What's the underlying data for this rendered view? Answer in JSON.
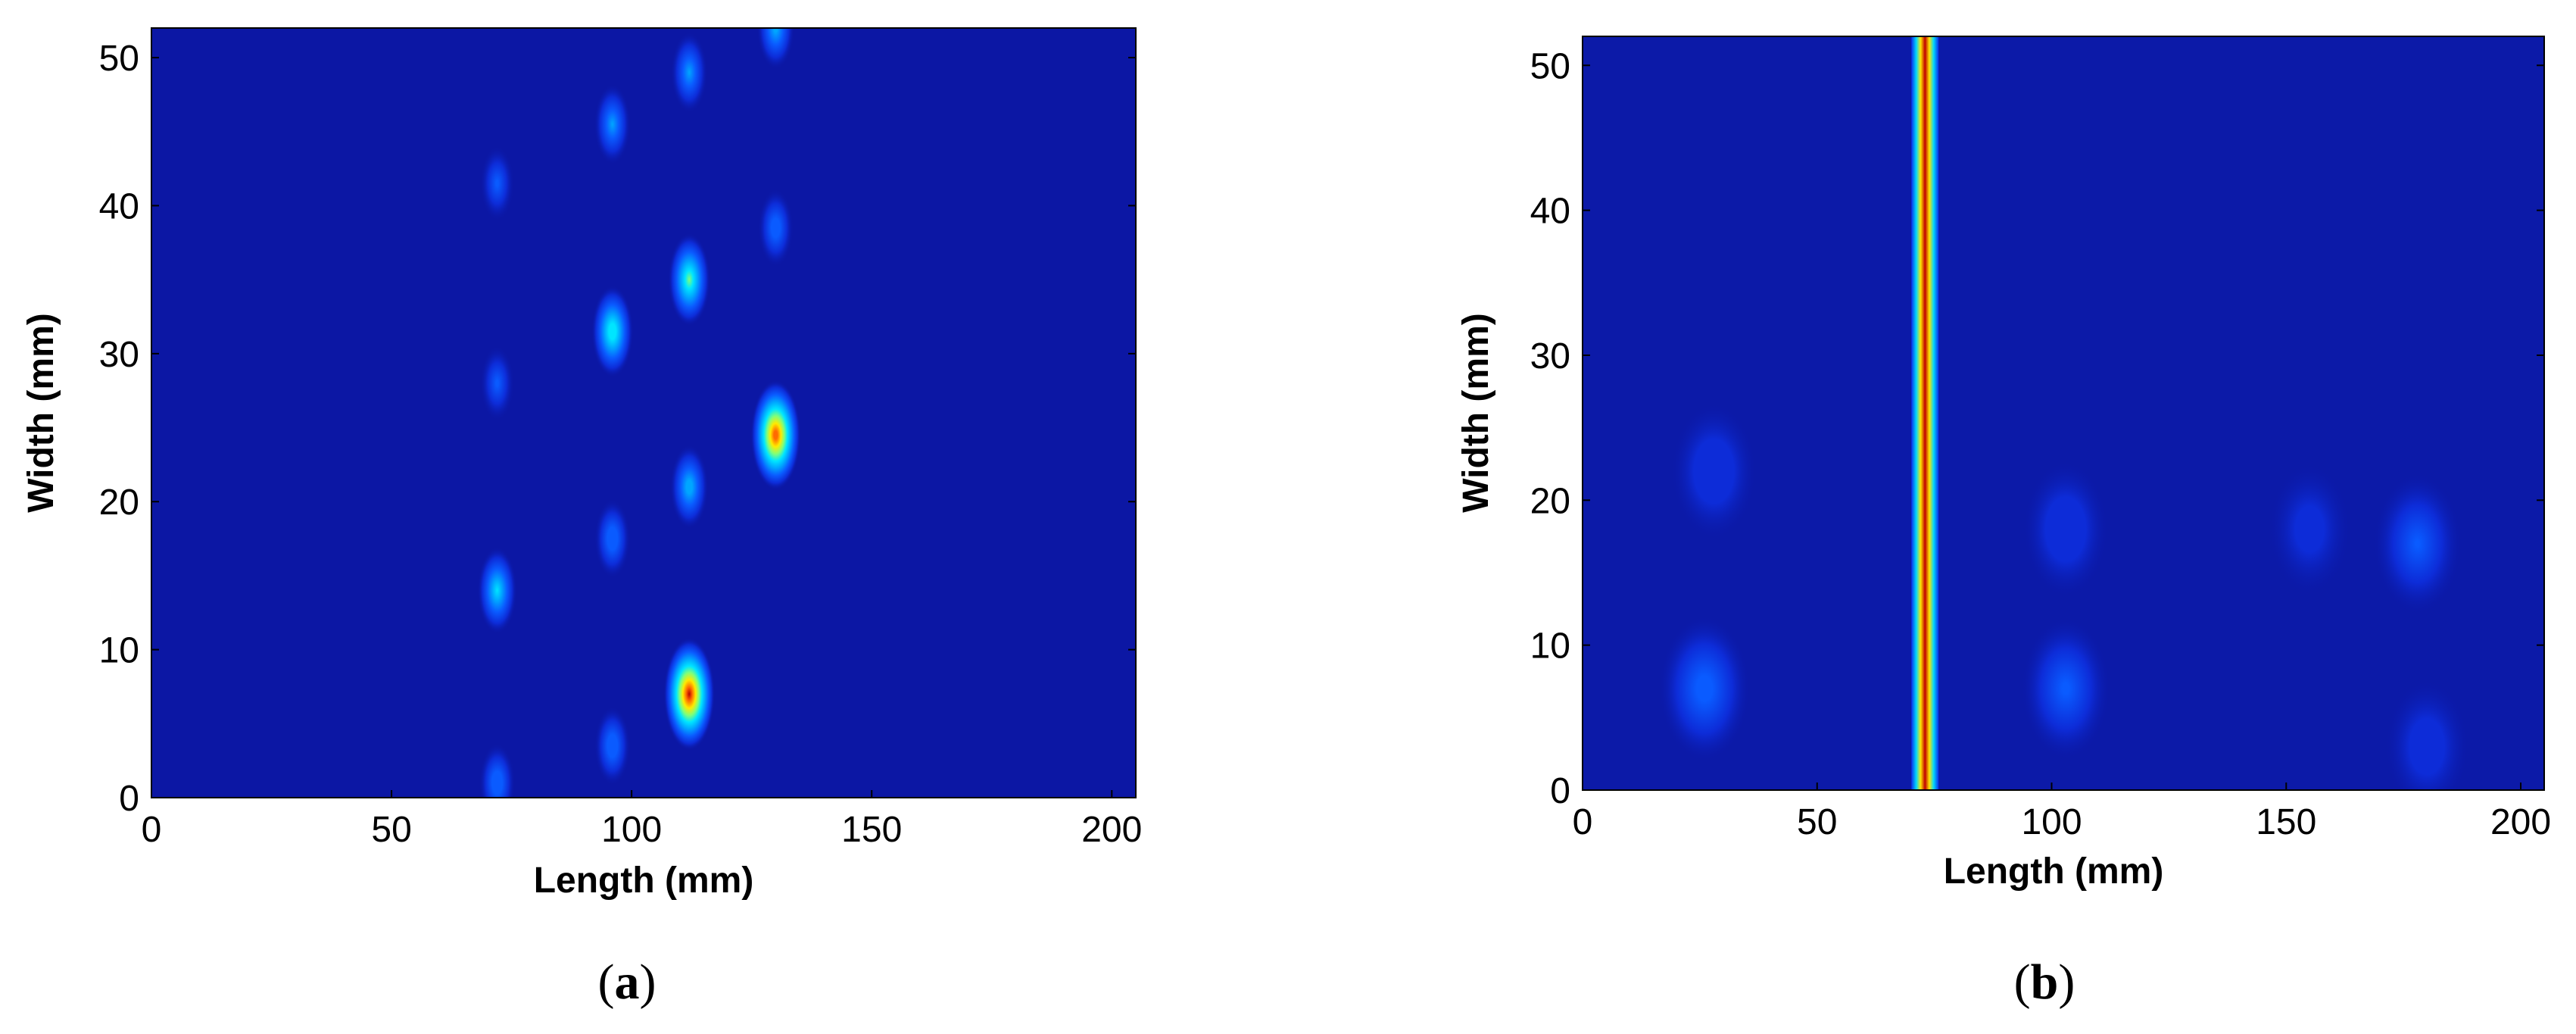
{
  "chart_data": [
    {
      "type": "heatmap",
      "panel_label": "a",
      "xlabel": "Length (mm)",
      "ylabel": "Width (mm)",
      "xlim": [
        0,
        205
      ],
      "ylim": [
        0,
        52
      ],
      "xticks": [
        0,
        50,
        100,
        150,
        200
      ],
      "yticks": [
        0,
        10,
        20,
        30,
        40,
        50
      ],
      "colormap": "jet",
      "background_level": 0.06,
      "peaks": [
        {
          "x": 112,
          "y": 7,
          "intensity": 1.0
        },
        {
          "x": 130,
          "y": 24.5,
          "intensity": 0.95
        },
        {
          "x": 112,
          "y": 35,
          "intensity": 0.62
        },
        {
          "x": 96,
          "y": 31.5,
          "intensity": 0.6
        },
        {
          "x": 72,
          "y": 14,
          "intensity": 0.5
        },
        {
          "x": 112,
          "y": 21,
          "intensity": 0.45
        },
        {
          "x": 96,
          "y": 45.5,
          "intensity": 0.38
        },
        {
          "x": 112,
          "y": 49,
          "intensity": 0.38
        },
        {
          "x": 96,
          "y": 17.5,
          "intensity": 0.35
        },
        {
          "x": 96,
          "y": 3.5,
          "intensity": 0.35
        },
        {
          "x": 130,
          "y": 38.5,
          "intensity": 0.33
        },
        {
          "x": 130,
          "y": 52,
          "intensity": 0.42
        },
        {
          "x": 72,
          "y": 28,
          "intensity": 0.27
        },
        {
          "x": 72,
          "y": 41.5,
          "intensity": 0.27
        },
        {
          "x": 72,
          "y": 1,
          "intensity": 0.35
        }
      ]
    },
    {
      "type": "heatmap",
      "panel_label": "b",
      "xlabel": "Length (mm)",
      "ylabel": "Width (mm)",
      "xlim": [
        0,
        205
      ],
      "ylim": [
        0,
        52
      ],
      "xticks": [
        0,
        50,
        100,
        150,
        200
      ],
      "yticks": [
        0,
        10,
        20,
        30,
        40,
        50
      ],
      "colormap": "jet",
      "background_level": 0.1,
      "vertical_line": {
        "x": 73,
        "intensity": 1.0
      },
      "blobs": [
        {
          "x": 26,
          "y": 7,
          "intensity": 0.3
        },
        {
          "x": 28,
          "y": 22,
          "intensity": 0.22
        },
        {
          "x": 103,
          "y": 7,
          "intensity": 0.27
        },
        {
          "x": 103,
          "y": 18,
          "intensity": 0.22
        },
        {
          "x": 155,
          "y": 18,
          "intensity": 0.18
        },
        {
          "x": 178,
          "y": 17,
          "intensity": 0.26
        },
        {
          "x": 180,
          "y": 3,
          "intensity": 0.2
        }
      ]
    }
  ]
}
